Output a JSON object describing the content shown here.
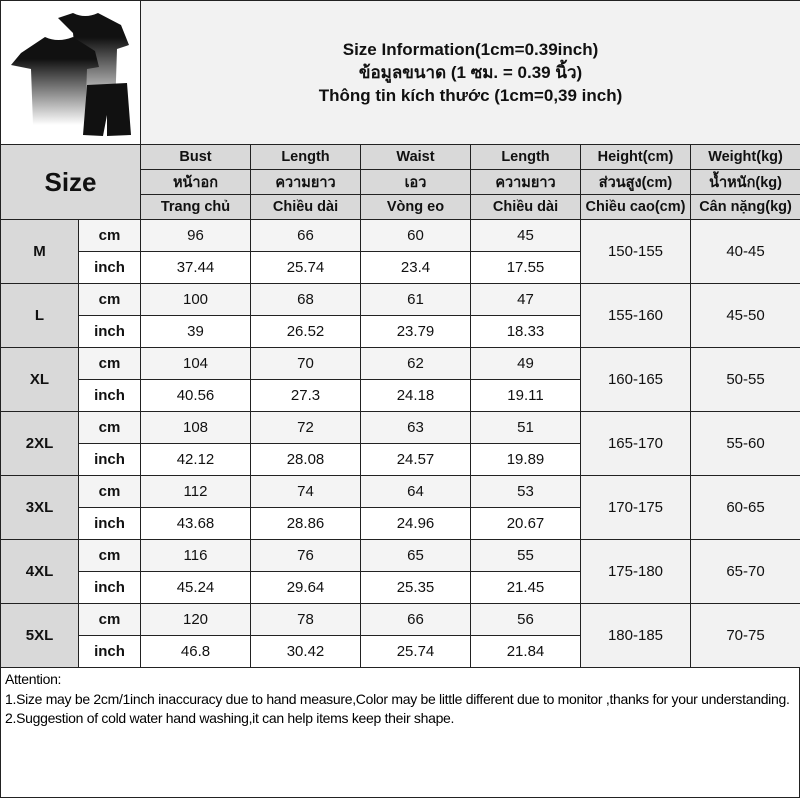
{
  "header": {
    "title_lines": [
      "Size Information(1cm=0.39inch)",
      "ข้อมูลขนาด (1 ซม. = 0.39 นิ้ว)",
      "Thông tin kích thước (1cm=0,39 inch)"
    ],
    "product_image": "black-white-gradient-tshirt-and-shorts-set"
  },
  "table": {
    "size_label": "Size",
    "columns": [
      {
        "en": "Bust",
        "th": "หน้าอก",
        "vi": "Trang chủ"
      },
      {
        "en": "Length",
        "th": "ความยาว",
        "vi": "Chiều dài"
      },
      {
        "en": "Waist",
        "th": "เอว",
        "vi": "Vòng eo"
      },
      {
        "en": "Length",
        "th": "ความยาว",
        "vi": "Chiều dài"
      },
      {
        "en": "Height(cm)",
        "th": "ส่วนสูง(cm)",
        "vi": "Chiều cao(cm)"
      },
      {
        "en": "Weight(kg)",
        "th": "น้ำหนัก(kg)",
        "vi": "Cân nặng(kg)"
      }
    ],
    "unit_cm": "cm",
    "unit_inch": "inch",
    "rows": [
      {
        "size": "M",
        "cm": [
          "96",
          "66",
          "60",
          "45"
        ],
        "inch": [
          "37.44",
          "25.74",
          "23.4",
          "17.55"
        ],
        "height": "150-155",
        "weight": "40-45"
      },
      {
        "size": "L",
        "cm": [
          "100",
          "68",
          "61",
          "47"
        ],
        "inch": [
          "39",
          "26.52",
          "23.79",
          "18.33"
        ],
        "height": "155-160",
        "weight": "45-50"
      },
      {
        "size": "XL",
        "cm": [
          "104",
          "70",
          "62",
          "49"
        ],
        "inch": [
          "40.56",
          "27.3",
          "24.18",
          "19.11"
        ],
        "height": "160-165",
        "weight": "50-55"
      },
      {
        "size": "2XL",
        "cm": [
          "108",
          "72",
          "63",
          "51"
        ],
        "inch": [
          "42.12",
          "28.08",
          "24.57",
          "19.89"
        ],
        "height": "165-170",
        "weight": "55-60"
      },
      {
        "size": "3XL",
        "cm": [
          "112",
          "74",
          "64",
          "53"
        ],
        "inch": [
          "43.68",
          "28.86",
          "24.96",
          "20.67"
        ],
        "height": "170-175",
        "weight": "60-65"
      },
      {
        "size": "4XL",
        "cm": [
          "116",
          "76",
          "65",
          "55"
        ],
        "inch": [
          "45.24",
          "29.64",
          "25.35",
          "21.45"
        ],
        "height": "175-180",
        "weight": "65-70"
      },
      {
        "size": "5XL",
        "cm": [
          "120",
          "78",
          "66",
          "56"
        ],
        "inch": [
          "46.8",
          "30.42",
          "25.74",
          "21.84"
        ],
        "height": "180-185",
        "weight": "70-75"
      }
    ]
  },
  "notes": {
    "heading": "Attention:",
    "items": [
      "1.Size may be 2cm/1inch inaccuracy due to hand measure,Color may be little different due to monitor ,thanks for your understanding.",
      "2.Suggestion of cold water hand washing,it can help items keep their shape."
    ]
  }
}
